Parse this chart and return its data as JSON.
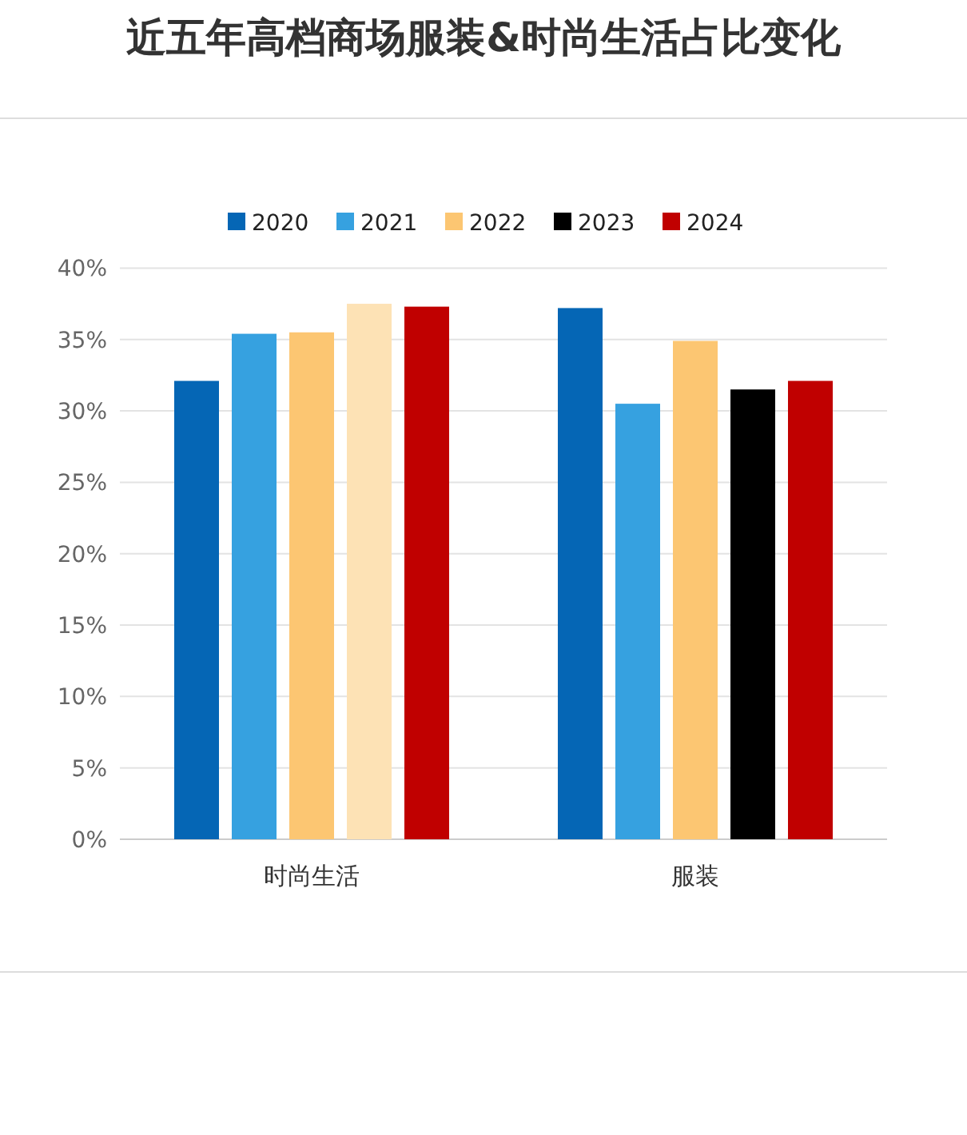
{
  "chart_data": {
    "type": "bar",
    "title": "近五年高档商场服装&时尚生活占比变化",
    "categories": [
      "时尚生活",
      "服装"
    ],
    "series": [
      {
        "name": "2020",
        "color": "#0566b5",
        "values": [
          32.1,
          37.2
        ]
      },
      {
        "name": "2021",
        "color": "#36a1e0",
        "values": [
          35.4,
          30.5
        ]
      },
      {
        "name": "2022",
        "color": "#fcc672",
        "values": [
          35.5,
          34.9
        ]
      },
      {
        "name": "2023",
        "color": "#000000",
        "colors": [
          "#fde2b5",
          "#000000"
        ],
        "values": [
          37.5,
          31.5
        ]
      },
      {
        "name": "2024",
        "color": "#c00000",
        "values": [
          37.3,
          32.1
        ]
      }
    ],
    "ylim": [
      0,
      40
    ],
    "yticks": [
      {
        "value": 0,
        "label": "0%"
      },
      {
        "value": 5,
        "label": "5%"
      },
      {
        "value": 10,
        "label": "10%"
      },
      {
        "value": 15,
        "label": "15%"
      },
      {
        "value": 20,
        "label": "20%"
      },
      {
        "value": 25,
        "label": "25%"
      },
      {
        "value": 30,
        "label": "30%"
      },
      {
        "value": 35,
        "label": "35%"
      },
      {
        "value": 40,
        "label": "40%"
      }
    ],
    "grid": "y",
    "legend": "top"
  }
}
